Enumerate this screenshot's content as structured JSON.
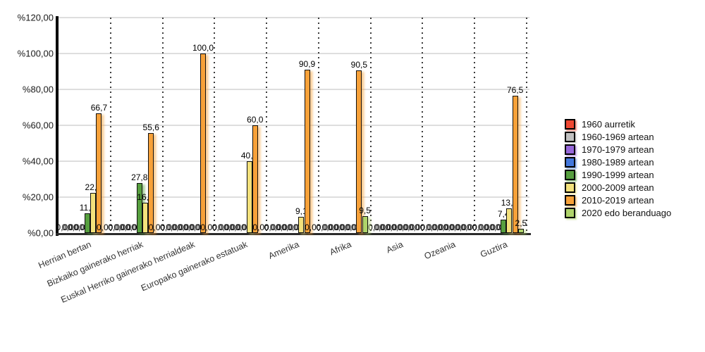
{
  "chart_data": {
    "type": "bar",
    "title": "",
    "xlabel": "",
    "ylabel": "",
    "categories": [
      "Herrian bertan",
      "Bizkaiko gainerako herriak",
      "Euskal Herriko gainerako herrialdeak",
      "Europako gainerako estatuak",
      "Amerika",
      "Afrika",
      "Asia",
      "Ozeania",
      "Guztira"
    ],
    "y_axis": {
      "min": 0,
      "max": 120,
      "step": 20,
      "tick_labels": [
        "%120,00",
        "%100,00",
        "%80,00",
        "%60,00",
        "%40,00",
        "%20,00",
        "%0,00"
      ],
      "grid": true
    },
    "legend_position": "right",
    "series": [
      {
        "name": "1960 aurretik",
        "color": "#EF4731",
        "values": [
          0,
          0,
          0,
          0,
          0,
          0,
          0,
          0,
          0
        ],
        "labels": [
          "0,00",
          "0,00",
          "0,00",
          "0,00",
          "0,00",
          "0,00",
          "0,00",
          "0,00",
          "0,00"
        ]
      },
      {
        "name": "1960-1969 artean",
        "color": "#C0C0C0",
        "values": [
          0,
          0,
          0,
          0,
          0,
          0,
          0,
          0,
          0
        ],
        "labels": [
          "0,00",
          "0,00",
          "0,00",
          "0,00",
          "0,00",
          "0,00",
          "0,00",
          "0,00",
          "0,00"
        ]
      },
      {
        "name": "1970-1979 artean",
        "color": "#9768DB",
        "values": [
          0,
          0,
          0,
          0,
          0,
          0,
          0,
          0,
          0
        ],
        "labels": [
          "0,00",
          "0,00",
          "0,00",
          "0,00",
          "0,00",
          "0,00",
          "0,00",
          "0,00",
          "0,00"
        ]
      },
      {
        "name": "1980-1989 artean",
        "color": "#4377DC",
        "values": [
          0,
          0,
          0,
          0,
          0,
          0,
          0,
          0,
          0
        ],
        "labels": [
          "0,00",
          "0,00",
          "0,00",
          "0,00",
          "0,00",
          "0,00",
          "0,00",
          "0,00",
          "0,00"
        ]
      },
      {
        "name": "1990-1999 artean",
        "color": "#569F3E",
        "values": [
          11.1,
          27.8,
          0,
          0,
          0,
          0,
          0,
          0,
          7.4
        ],
        "labels": [
          "11,1",
          "27,8",
          "0,00",
          "0,00",
          "0,00",
          "0,00",
          "0,00",
          "0,00",
          "7,4"
        ]
      },
      {
        "name": "2000-2009 artean",
        "color": "#F3E17C",
        "values": [
          22.2,
          16.7,
          0,
          40.0,
          9.1,
          0,
          0,
          0,
          13.6
        ],
        "labels": [
          "22,2",
          "16,7",
          "0,00",
          "40,0",
          "9,1",
          "0,00",
          "0,00",
          "0,00",
          "13,6"
        ]
      },
      {
        "name": "2010-2019 artean",
        "color": "#F7A139",
        "values": [
          66.7,
          55.6,
          100.0,
          60.0,
          90.9,
          90.5,
          0,
          0,
          76.5
        ],
        "labels": [
          "66,7",
          "55,6",
          "100,0",
          "60,0",
          "90,9",
          "90,5",
          "0,00",
          "0,00",
          "76,5"
        ]
      },
      {
        "name": "2020 edo beranduago",
        "color": "#AFD46A",
        "values": [
          0,
          0,
          0,
          0,
          0,
          9.5,
          0,
          0,
          2.5
        ],
        "labels": [
          "0,00",
          "0,00",
          "0,00",
          "0,00",
          "0,00",
          "9,5",
          "0,00",
          "0,00",
          "2,5"
        ]
      }
    ]
  }
}
